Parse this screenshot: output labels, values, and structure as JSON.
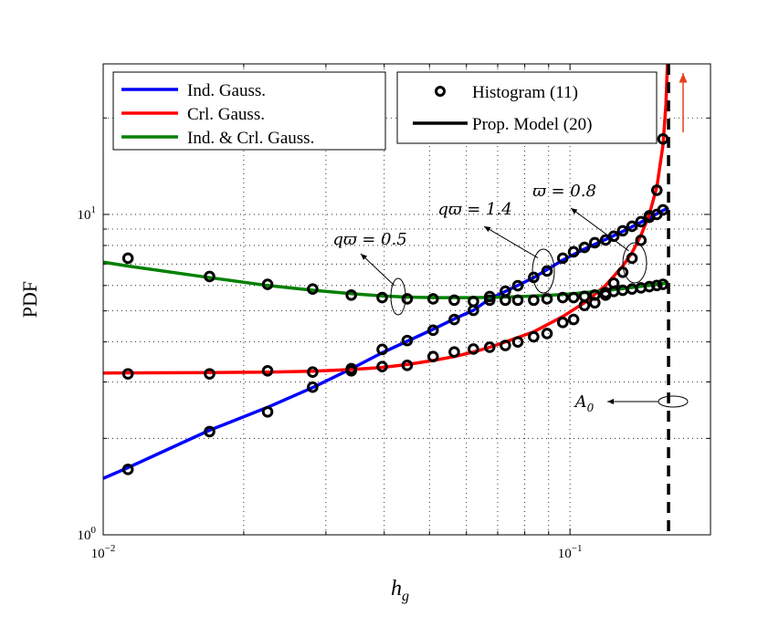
{
  "chart_data": {
    "type": "line",
    "xscale": "log",
    "yscale": "log",
    "xlim": [
      0.01,
      0.2
    ],
    "ylim": [
      1,
      29.5
    ],
    "xlabel": "h_g",
    "ylabel": "PDF",
    "grid": true,
    "x_ticks": [
      {
        "value": 0.01,
        "base": "10",
        "exp": "−2"
      },
      {
        "value": 0.1,
        "base": "10",
        "exp": "−1"
      }
    ],
    "y_ticks": [
      {
        "value": 1,
        "base": "10",
        "exp": "0"
      },
      {
        "value": 10,
        "base": "10",
        "exp": "1"
      }
    ],
    "lines": [
      {
        "name": "Ind. Gauss.",
        "color": "#0000ff",
        "x": [
          0.01,
          0.0113,
          0.0169,
          0.0225,
          0.0281,
          0.034,
          0.0396,
          0.0448,
          0.0509,
          0.0565,
          0.0621,
          0.0673,
          0.0727,
          0.0836,
          0.0965,
          0.1074,
          0.1192,
          0.1297,
          0.1419,
          0.1535,
          0.1626
        ],
        "y": [
          1.5,
          1.62,
          2.12,
          2.5,
          2.88,
          3.3,
          3.7,
          4.02,
          4.38,
          4.72,
          5.02,
          5.45,
          5.75,
          6.35,
          7.2,
          7.8,
          8.35,
          8.85,
          9.45,
          10.05,
          10.5
        ]
      },
      {
        "name": "Crl. Gauss.",
        "color": "#ff0000",
        "x": [
          0.01,
          0.0169,
          0.0225,
          0.0281,
          0.034,
          0.0396,
          0.0448,
          0.0509,
          0.0565,
          0.0621,
          0.0673,
          0.0727,
          0.0836,
          0.0965,
          0.1074,
          0.1192,
          0.1297,
          0.1358,
          0.1419,
          0.1479,
          0.1535,
          0.1582,
          0.1605,
          0.1618
        ],
        "y": [
          3.2,
          3.21,
          3.22,
          3.24,
          3.28,
          3.33,
          3.4,
          3.5,
          3.6,
          3.72,
          3.85,
          4.0,
          4.3,
          4.8,
          5.3,
          6.0,
          6.9,
          7.6,
          8.6,
          10.0,
          12.2,
          16.5,
          22.0,
          30.0
        ]
      },
      {
        "name": "Ind. & Crl. Gauss.",
        "color": "#008000",
        "x": [
          0.01,
          0.0113,
          0.0169,
          0.0225,
          0.0281,
          0.034,
          0.0396,
          0.0448,
          0.0509,
          0.0565,
          0.0621,
          0.0727,
          0.0836,
          0.0965,
          0.1074,
          0.1192,
          0.1297,
          0.1419,
          0.1535,
          0.1626
        ],
        "y": [
          7.1,
          6.9,
          6.35,
          6.0,
          5.8,
          5.66,
          5.57,
          5.52,
          5.5,
          5.5,
          5.5,
          5.52,
          5.56,
          5.62,
          5.7,
          5.79,
          5.87,
          5.96,
          6.05,
          6.12
        ]
      },
      {
        "name": "Prop. Model (20)",
        "color": "#000000",
        "style": "dashed-vertical",
        "x_value": 0.1626
      }
    ],
    "scatter": {
      "name": "Histogram (11)",
      "x": [
        0.0113,
        0.0169,
        0.0225,
        0.0281,
        0.034,
        0.0396,
        0.0448,
        0.0509,
        0.0565,
        0.0621,
        0.0673,
        0.0727,
        0.0773,
        0.0836,
        0.0893,
        0.0965,
        0.1018,
        0.1074,
        0.113,
        0.1192,
        0.1241,
        0.1297,
        0.1358,
        0.1419,
        0.1479,
        0.1535,
        0.1582
      ],
      "sets": [
        {
          "curve": "Ind. Gauss.",
          "y": [
            1.6,
            2.1,
            2.42,
            2.89,
            3.3,
            3.79,
            4.04,
            4.35,
            4.7,
            5.02,
            5.54,
            5.76,
            5.99,
            6.36,
            6.66,
            7.3,
            7.64,
            7.89,
            8.16,
            8.32,
            8.55,
            8.89,
            9.18,
            9.49,
            9.8,
            10.0,
            10.33
          ]
        },
        {
          "curve": "Crl. Gauss.",
          "y": [
            3.18,
            3.18,
            3.25,
            3.22,
            3.25,
            3.35,
            3.38,
            3.6,
            3.72,
            3.8,
            3.85,
            3.9,
            4.0,
            4.15,
            4.25,
            4.6,
            4.7,
            5.2,
            5.3,
            5.6,
            6.1,
            6.6,
            7.3,
            8.3,
            9.9,
            11.9,
            17.2
          ]
        },
        {
          "curve": "Ind. & Crl. Gauss.",
          "y": [
            7.3,
            6.4,
            6.05,
            5.85,
            5.6,
            5.5,
            5.45,
            5.45,
            5.4,
            5.35,
            5.4,
            5.4,
            5.4,
            5.4,
            5.45,
            5.5,
            5.5,
            5.55,
            5.6,
            5.7,
            5.75,
            5.8,
            5.85,
            5.9,
            5.95,
            6.0,
            6.05
          ]
        }
      ]
    },
    "annotations": [
      {
        "text": "qϖ = 0.5",
        "target_x": 0.0415,
        "target_y": 5.5
      },
      {
        "text": "qϖ = 1.4",
        "target_x": 0.088,
        "target_y": 6.4
      },
      {
        "text": "ϖ = 0.8",
        "target_x": 0.139,
        "target_y": 7.0
      },
      {
        "text": "A",
        "sub": "0",
        "target_x": 0.1626,
        "target_y": 2.6
      }
    ],
    "legends": {
      "left": [
        "Ind. Gauss.",
        "Crl. Gauss.",
        "Ind. & Crl. Gauss."
      ],
      "right": [
        "Histogram (11)",
        "Prop. Model (20)"
      ]
    },
    "up_arrow_color": "#e8401c"
  }
}
